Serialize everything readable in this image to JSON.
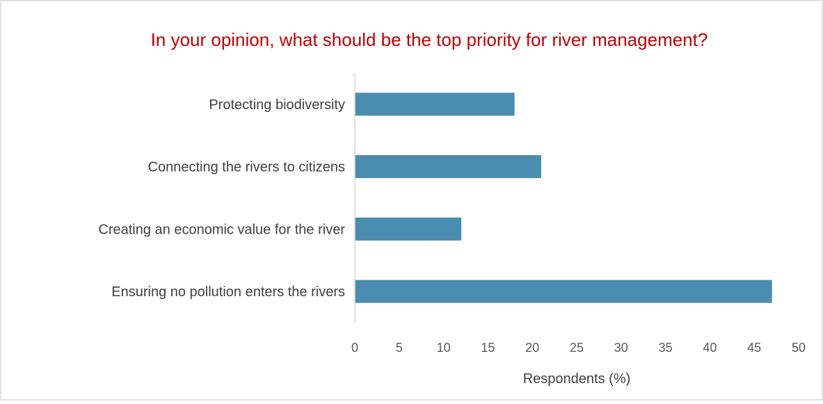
{
  "chart_data": {
    "type": "bar",
    "orientation": "horizontal",
    "title": "In your opinion, what should be the top priority for river management?",
    "xlabel": "Respondents (%)",
    "ylabel": "",
    "categories": [
      "Protecting biodiversity",
      "Connecting the rivers to citizens",
      "Creating an economic value for the river",
      "Ensuring no pollution enters the rivers"
    ],
    "values": [
      18,
      21,
      12,
      47
    ],
    "xlim": [
      0,
      50
    ],
    "xticks": [
      0,
      5,
      10,
      15,
      20,
      25,
      30,
      35,
      40,
      45,
      50
    ],
    "grid": false,
    "legend": "none",
    "colors": {
      "bar": "#4a8db0",
      "title": "#c00000",
      "text": "#404040",
      "tick_text": "#595959",
      "axis": "#d9d9d9",
      "border": "#d9d9d9"
    }
  }
}
